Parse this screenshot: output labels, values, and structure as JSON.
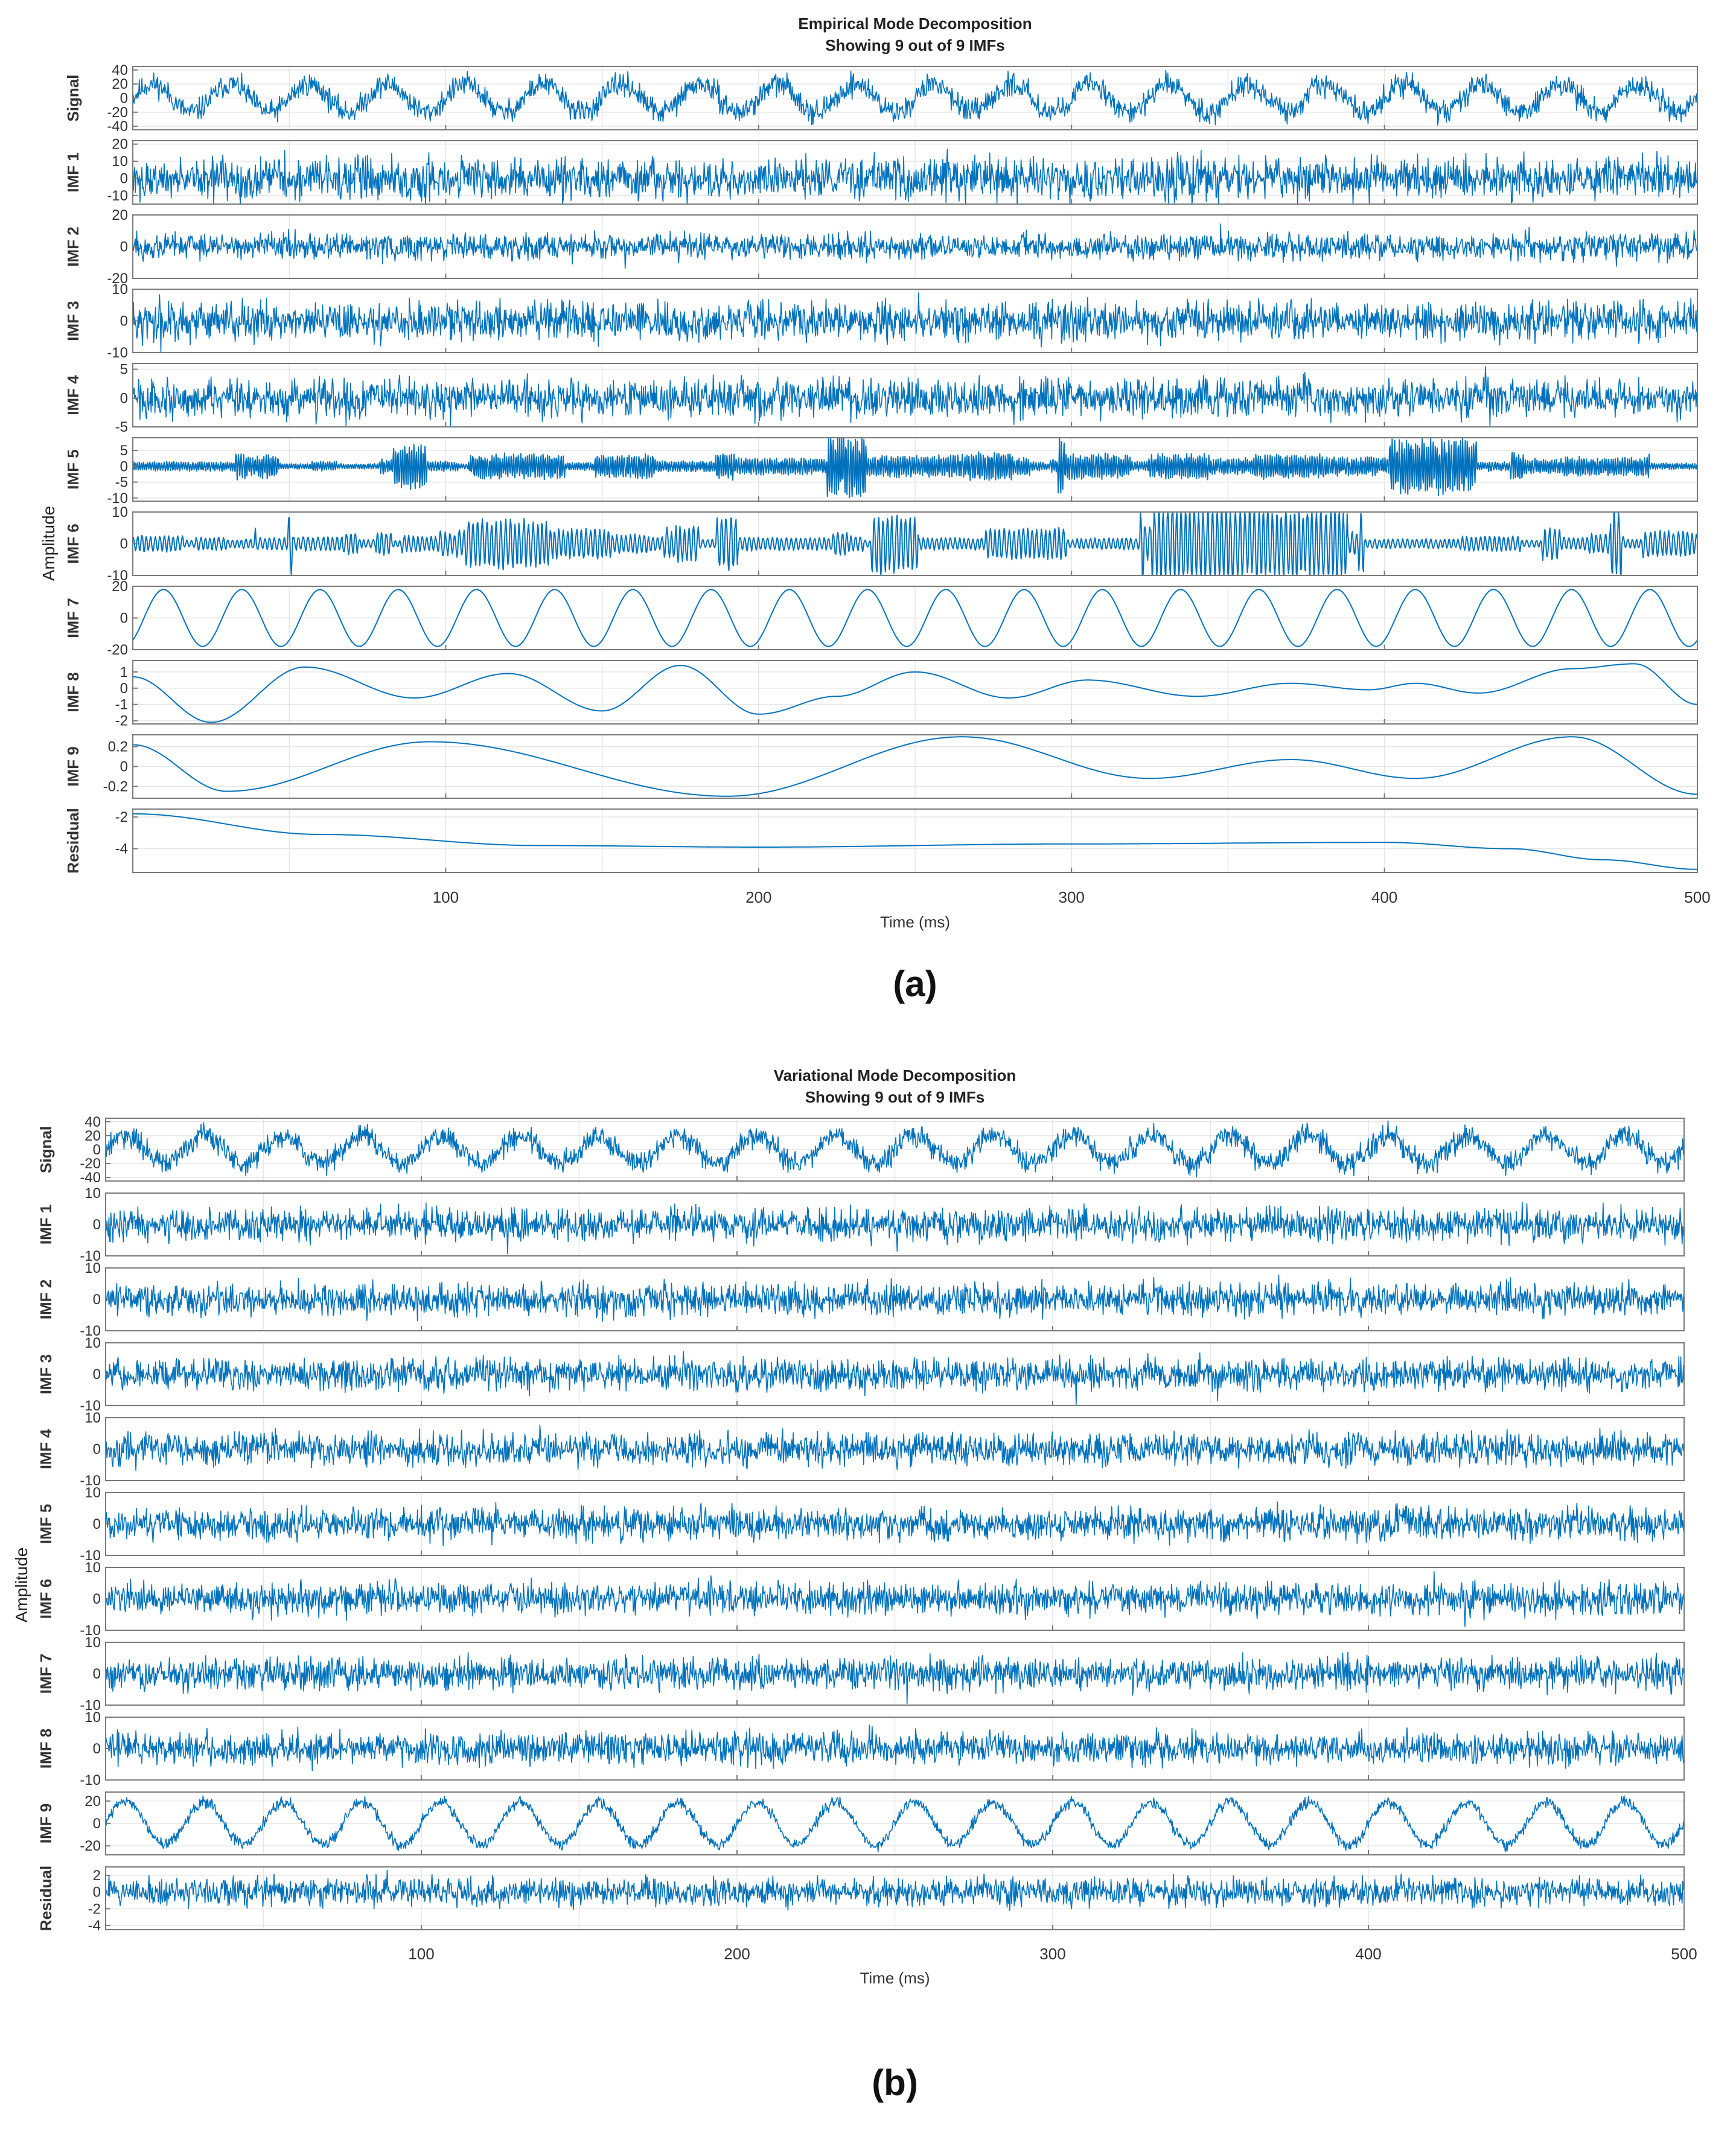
{
  "chart_data": [
    {
      "type": "line",
      "title": "Empirical Mode Decomposition",
      "subtitle": "Showing 9 out of 9 IMFs",
      "xlabel": "Time (ms)",
      "ylabel": "Amplitude",
      "xlim": [
        0,
        500
      ],
      "x_ticks": [
        100,
        200,
        300,
        400,
        500
      ],
      "grid": true,
      "caption": "(a)",
      "series": [
        {
          "name": "Signal",
          "kind": "sine_noise",
          "amp": 20,
          "noise": 8,
          "cycles": 20,
          "ylim": [
            -45,
            45
          ],
          "y_ticks": [
            40,
            20,
            0,
            -20,
            -40
          ],
          "tick_labels": [
            "40",
            "20",
            "0",
            "-20",
            "-40"
          ]
        },
        {
          "name": "IMF 1",
          "kind": "noise",
          "amp": 6,
          "ylim": [
            -15,
            22
          ],
          "y_ticks": [
            20,
            10,
            0,
            -10
          ],
          "tick_labels": [
            "20",
            "10",
            "0",
            "-10"
          ]
        },
        {
          "name": "IMF 2",
          "kind": "noise",
          "amp": 4,
          "ylim": [
            -20,
            20
          ],
          "y_ticks": [
            20,
            0,
            -20
          ],
          "tick_labels": [
            "20",
            "0",
            "-20"
          ]
        },
        {
          "name": "IMF 3",
          "kind": "noise",
          "amp": 3,
          "ylim": [
            -10,
            10
          ],
          "y_ticks": [
            10,
            0,
            -10
          ],
          "tick_labels": [
            "10",
            "0",
            "-10"
          ]
        },
        {
          "name": "IMF 4",
          "kind": "noise",
          "amp": 1.6,
          "ylim": [
            -5,
            6
          ],
          "y_ticks": [
            5,
            0,
            -5
          ],
          "tick_labels": [
            "5",
            "0",
            "-5"
          ]
        },
        {
          "name": "IMF 5",
          "kind": "wave",
          "amp": 2,
          "freq": 1.8,
          "ylim": [
            -11,
            9
          ],
          "y_ticks": [
            5,
            0,
            -5,
            -10
          ],
          "tick_labels": [
            "5",
            "0",
            "-5",
            "-10"
          ]
        },
        {
          "name": "IMF 6",
          "kind": "wave",
          "amp": 2.5,
          "freq": 0.9,
          "ylim": [
            -10,
            10
          ],
          "y_ticks": [
            10,
            0,
            -10
          ],
          "tick_labels": [
            "10",
            "0",
            "-10"
          ]
        },
        {
          "name": "IMF 7",
          "kind": "sine",
          "amp": 18,
          "cycles": 20,
          "ylim": [
            -20,
            20
          ],
          "y_ticks": [
            20,
            0,
            -20
          ],
          "tick_labels": [
            "20",
            "0",
            "-20"
          ]
        },
        {
          "name": "IMF 8",
          "kind": "smooth",
          "ylim": [
            -2.2,
            1.7
          ],
          "knots": [
            [
              0,
              0.7
            ],
            [
              25,
              -2.1
            ],
            [
              55,
              1.3
            ],
            [
              90,
              -0.6
            ],
            [
              120,
              0.9
            ],
            [
              150,
              -1.4
            ],
            [
              175,
              1.4
            ],
            [
              200,
              -1.6
            ],
            [
              225,
              -0.5
            ],
            [
              250,
              1.0
            ],
            [
              280,
              -0.6
            ],
            [
              305,
              0.5
            ],
            [
              340,
              -0.5
            ],
            [
              370,
              0.3
            ],
            [
              395,
              -0.1
            ],
            [
              410,
              0.3
            ],
            [
              430,
              -0.3
            ],
            [
              460,
              1.2
            ],
            [
              480,
              1.5
            ],
            [
              500,
              -1.0
            ]
          ],
          "y_ticks": [
            1,
            0,
            -1,
            -2
          ],
          "tick_labels": [
            "1",
            "0",
            "-1",
            "-2"
          ]
        },
        {
          "name": "IMF 9",
          "kind": "smooth",
          "ylim": [
            -0.32,
            0.32
          ],
          "knots": [
            [
              0,
              0.22
            ],
            [
              30,
              -0.25
            ],
            [
              95,
              0.25
            ],
            [
              190,
              -0.3
            ],
            [
              265,
              0.3
            ],
            [
              325,
              -0.12
            ],
            [
              370,
              0.07
            ],
            [
              410,
              -0.12
            ],
            [
              460,
              0.3
            ],
            [
              500,
              -0.28
            ]
          ],
          "y_ticks": [
            0.2,
            0,
            -0.2
          ],
          "tick_labels": [
            "0.2",
            "0",
            "-0.2"
          ]
        },
        {
          "name": "Residual",
          "kind": "smooth",
          "ylim": [
            -5.5,
            -1.5
          ],
          "knots": [
            [
              0,
              -1.8
            ],
            [
              60,
              -3.1
            ],
            [
              130,
              -3.8
            ],
            [
              200,
              -3.9
            ],
            [
              300,
              -3.7
            ],
            [
              400,
              -3.6
            ],
            [
              440,
              -4.0
            ],
            [
              470,
              -4.7
            ],
            [
              500,
              -5.3
            ]
          ],
          "y_ticks": [
            -2,
            -4
          ],
          "tick_labels": [
            "-2",
            "-4"
          ]
        }
      ]
    },
    {
      "type": "line",
      "title": "Variational Mode Decomposition",
      "subtitle": "Showing 9 out of 9 IMFs",
      "xlabel": "Time (ms)",
      "ylabel": "Amplitude",
      "xlim": [
        0,
        500
      ],
      "x_ticks": [
        100,
        200,
        300,
        400,
        500
      ],
      "grid": true,
      "caption": "(b)",
      "series": [
        {
          "name": "Signal",
          "kind": "sine_noise",
          "amp": 20,
          "noise": 8,
          "cycles": 20,
          "ylim": [
            -45,
            45
          ],
          "y_ticks": [
            40,
            20,
            0,
            -20,
            -40
          ],
          "tick_labels": [
            "40",
            "20",
            "0",
            "-20",
            "-40"
          ]
        },
        {
          "name": "IMF 1",
          "kind": "noise",
          "amp": 2.5,
          "ylim": [
            -10,
            10
          ],
          "y_ticks": [
            10,
            0,
            -10
          ],
          "tick_labels": [
            "10",
            "0",
            "-10"
          ]
        },
        {
          "name": "IMF 2",
          "kind": "noise",
          "amp": 2.5,
          "ylim": [
            -10,
            10
          ],
          "y_ticks": [
            10,
            0,
            -10
          ],
          "tick_labels": [
            "10",
            "0",
            "-10"
          ]
        },
        {
          "name": "IMF 3",
          "kind": "noise",
          "amp": 2.5,
          "ylim": [
            -10,
            10
          ],
          "y_ticks": [
            10,
            0,
            -10
          ],
          "tick_labels": [
            "10",
            "0",
            "-10"
          ]
        },
        {
          "name": "IMF 4",
          "kind": "noise",
          "amp": 2.5,
          "ylim": [
            -10,
            10
          ],
          "y_ticks": [
            10,
            0,
            -10
          ],
          "tick_labels": [
            "10",
            "0",
            "-10"
          ]
        },
        {
          "name": "IMF 5",
          "kind": "noise",
          "amp": 2.5,
          "ylim": [
            -10,
            10
          ],
          "y_ticks": [
            10,
            0,
            -10
          ],
          "tick_labels": [
            "10",
            "0",
            "-10"
          ]
        },
        {
          "name": "IMF 6",
          "kind": "noise",
          "amp": 2.5,
          "ylim": [
            -10,
            10
          ],
          "y_ticks": [
            10,
            0,
            -10
          ],
          "tick_labels": [
            "10",
            "0",
            "-10"
          ]
        },
        {
          "name": "IMF 7",
          "kind": "noise",
          "amp": 2.5,
          "ylim": [
            -10,
            10
          ],
          "y_ticks": [
            10,
            0,
            -10
          ],
          "tick_labels": [
            "10",
            "0",
            "-10"
          ]
        },
        {
          "name": "IMF 8",
          "kind": "noise",
          "amp": 2.5,
          "ylim": [
            -10,
            10
          ],
          "y_ticks": [
            10,
            0,
            -10
          ],
          "tick_labels": [
            "10",
            "0",
            "-10"
          ]
        },
        {
          "name": "IMF 9",
          "kind": "sine_noise",
          "amp": 19,
          "noise": 2.5,
          "cycles": 20,
          "ylim": [
            -28,
            28
          ],
          "y_ticks": [
            20,
            0,
            -20
          ],
          "tick_labels": [
            "20",
            "0",
            "-20"
          ]
        },
        {
          "name": "Residual",
          "kind": "noise",
          "amp": 0.8,
          "ylim": [
            -4.5,
            3
          ],
          "y_ticks": [
            2,
            0,
            -2,
            -4
          ],
          "tick_labels": [
            "2",
            "0",
            "-2",
            "-4"
          ]
        }
      ]
    }
  ],
  "colors": {
    "line": "#0072BD",
    "frame": "#7a7a7a",
    "grid": "#e6e6e6",
    "text": "#333333"
  }
}
